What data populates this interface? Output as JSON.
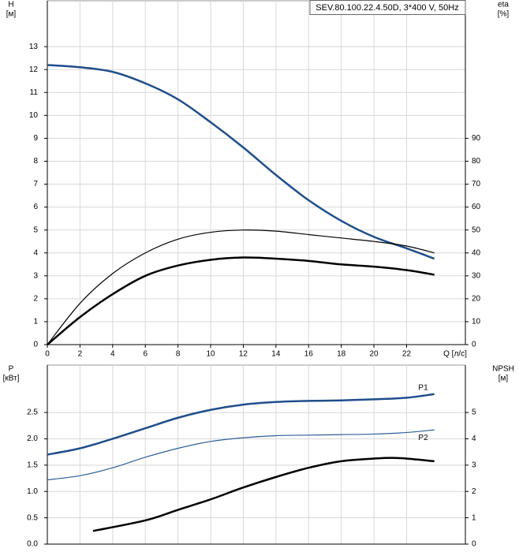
{
  "chart_data": [
    {
      "type": "line",
      "title": "SEV.80.100.22.4.50D, 3*400 V, 50Hz",
      "ylabel": "H",
      "yunit": "[м]",
      "y2label": "eta",
      "y2unit": "[%]",
      "xlabel": "Q [л/с]",
      "x": [
        0,
        2,
        4,
        6,
        8,
        10,
        12,
        14,
        16,
        18,
        20,
        22,
        23.7
      ],
      "xlim": [
        0,
        25.6
      ],
      "xticks": [
        0,
        2,
        4,
        6,
        8,
        10,
        12,
        14,
        16,
        18,
        20,
        22
      ],
      "ylim": [
        0,
        15
      ],
      "yticks": [
        0,
        1,
        2,
        3,
        4,
        5,
        6,
        7,
        8,
        9,
        10,
        11,
        12,
        13
      ],
      "y2lim": [
        0,
        150
      ],
      "y2ticks": [
        0,
        10,
        20,
        30,
        40,
        50,
        60,
        70,
        80,
        90
      ],
      "grid": true,
      "series": [
        {
          "color": "#1f4e8c",
          "width": 2.5,
          "values": [
            12.2,
            12.1,
            11.9,
            11.4,
            10.7,
            9.7,
            8.6,
            7.4,
            6.3,
            5.4,
            4.7,
            4.2,
            3.75
          ]
        },
        {
          "color": "#000000",
          "width": 1.2,
          "axis": "y2",
          "values": [
            0,
            18,
            31,
            40,
            46,
            49,
            50,
            49.5,
            48,
            46.5,
            45,
            43,
            40
          ]
        },
        {
          "color": "#000000",
          "width": 2.5,
          "axis": "y2",
          "values": [
            0,
            12,
            22,
            30,
            34.5,
            37,
            38,
            37.5,
            36.5,
            35,
            34,
            32.5,
            30.5
          ]
        }
      ]
    },
    {
      "type": "line",
      "ylabel": "P",
      "yunit": "[кВт]",
      "y2label": "NPSH",
      "y2unit": "[м]",
      "x": [
        0,
        2,
        4,
        6,
        8,
        10,
        12,
        14,
        16,
        18,
        20,
        22,
        23.7
      ],
      "xlim": [
        0,
        25.6
      ],
      "xticks": [
        0,
        2,
        4,
        6,
        8,
        10,
        12,
        14,
        16,
        18,
        20,
        22
      ],
      "ylim": [
        0,
        3.4
      ],
      "yticks": [
        {
          "value": 0,
          "label": "0.0"
        },
        0.5,
        {
          "value": 1,
          "label": "1.0"
        },
        1.5,
        {
          "value": 2,
          "label": "2.0"
        },
        2.5
      ],
      "y2lim": [
        0,
        6.8
      ],
      "y2ticks": [
        0,
        1,
        2,
        3,
        4,
        5
      ],
      "grid": true,
      "series": [
        {
          "name": "P1",
          "color": "#1f4e8c",
          "width": 2.5,
          "values": [
            1.7,
            1.82,
            2.0,
            2.2,
            2.4,
            2.55,
            2.65,
            2.7,
            2.72,
            2.73,
            2.75,
            2.78,
            2.85
          ]
        },
        {
          "name": "P2",
          "color": "#2e5f99",
          "width": 1.2,
          "values": [
            1.22,
            1.3,
            1.45,
            1.65,
            1.82,
            1.95,
            2.02,
            2.06,
            2.07,
            2.08,
            2.09,
            2.12,
            2.17
          ]
        },
        {
          "color": "#000000",
          "width": 2.5,
          "axis": "y2",
          "x": [
            2.8,
            6,
            8,
            10,
            12,
            14,
            16,
            18,
            20,
            21.5,
            23.7
          ],
          "values": [
            0.5,
            0.9,
            1.3,
            1.7,
            2.15,
            2.55,
            2.9,
            3.15,
            3.25,
            3.27,
            3.15
          ]
        }
      ]
    }
  ]
}
